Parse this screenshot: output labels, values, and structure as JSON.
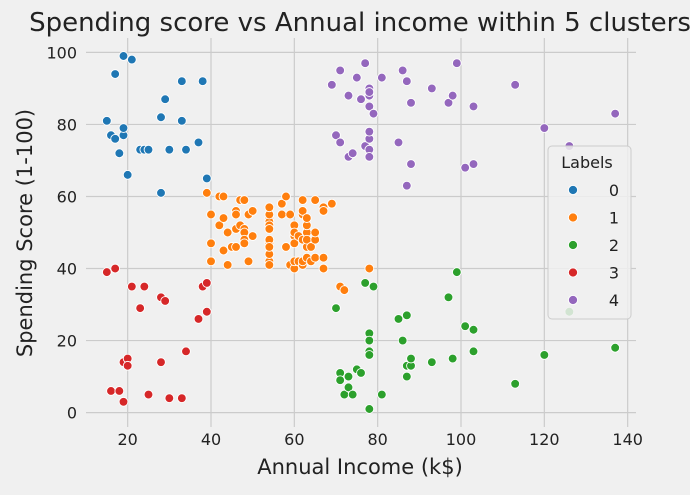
{
  "chart_data": {
    "type": "scatter",
    "title": "Spending score vs Annual income within 5 clusters",
    "xlabel": "Annual Income (k$)",
    "ylabel": "Spending Score (1-100)",
    "xlim": [
      10,
      142
    ],
    "ylim": [
      -4,
      104
    ],
    "xticks": [
      20,
      40,
      60,
      80,
      100,
      120,
      140
    ],
    "yticks": [
      0,
      20,
      40,
      60,
      80,
      100
    ],
    "grid": true,
    "legend": {
      "title": "Labels",
      "placement": "right"
    },
    "series": [
      {
        "name": "0",
        "color": "#1f77b4",
        "points": [
          [
            15,
            81
          ],
          [
            16,
            77
          ],
          [
            17,
            76
          ],
          [
            17,
            94
          ],
          [
            18,
            72
          ],
          [
            19,
            99
          ],
          [
            19,
            77
          ],
          [
            19,
            79
          ],
          [
            20,
            66
          ],
          [
            21,
            98
          ],
          [
            23,
            73
          ],
          [
            24,
            73
          ],
          [
            25,
            73
          ],
          [
            28,
            61
          ],
          [
            28,
            82
          ],
          [
            29,
            87
          ],
          [
            30,
            73
          ],
          [
            33,
            81
          ],
          [
            33,
            92
          ],
          [
            34,
            73
          ],
          [
            37,
            75
          ],
          [
            38,
            92
          ],
          [
            39,
            65
          ]
        ]
      },
      {
        "name": "1",
        "color": "#ff7f0e",
        "points": [
          [
            39,
            61
          ],
          [
            40,
            55
          ],
          [
            40,
            47
          ],
          [
            40,
            42
          ],
          [
            42,
            52
          ],
          [
            42,
            60
          ],
          [
            43,
            54
          ],
          [
            43,
            60
          ],
          [
            43,
            45
          ],
          [
            44,
            50
          ],
          [
            44,
            41
          ],
          [
            45,
            46
          ],
          [
            46,
            51
          ],
          [
            46,
            46
          ],
          [
            46,
            56
          ],
          [
            46,
            55
          ],
          [
            47,
            52
          ],
          [
            47,
            59
          ],
          [
            48,
            51
          ],
          [
            48,
            59
          ],
          [
            48,
            50
          ],
          [
            48,
            48
          ],
          [
            48,
            59
          ],
          [
            48,
            47
          ],
          [
            49,
            55
          ],
          [
            49,
            42
          ],
          [
            50,
            49
          ],
          [
            50,
            56
          ],
          [
            54,
            47
          ],
          [
            54,
            54
          ],
          [
            54,
            53
          ],
          [
            54,
            48
          ],
          [
            54,
            52
          ],
          [
            54,
            42
          ],
          [
            54,
            51
          ],
          [
            54,
            55
          ],
          [
            54,
            41
          ],
          [
            54,
            44
          ],
          [
            54,
            57
          ],
          [
            54,
            46
          ],
          [
            57,
            58
          ],
          [
            57,
            55
          ],
          [
            58,
            60
          ],
          [
            58,
            46
          ],
          [
            59,
            55
          ],
          [
            59,
            41
          ],
          [
            60,
            49
          ],
          [
            60,
            40
          ],
          [
            60,
            42
          ],
          [
            60,
            52
          ],
          [
            60,
            47
          ],
          [
            60,
            50
          ],
          [
            61,
            42
          ],
          [
            61,
            49
          ],
          [
            62,
            41
          ],
          [
            62,
            48
          ],
          [
            62,
            59
          ],
          [
            62,
            55
          ],
          [
            62,
            56
          ],
          [
            62,
            42
          ],
          [
            63,
            50
          ],
          [
            63,
            46
          ],
          [
            63,
            43
          ],
          [
            63,
            48
          ],
          [
            63,
            52
          ],
          [
            63,
            54
          ],
          [
            64,
            42
          ],
          [
            64,
            46
          ],
          [
            65,
            48
          ],
          [
            65,
            50
          ],
          [
            65,
            43
          ],
          [
            65,
            59
          ],
          [
            67,
            43
          ],
          [
            67,
            57
          ],
          [
            67,
            56
          ],
          [
            67,
            40
          ],
          [
            69,
            58
          ],
          [
            71,
            35
          ],
          [
            72,
            34
          ],
          [
            78,
            40
          ]
        ]
      },
      {
        "name": "2",
        "color": "#2ca02c",
        "points": [
          [
            70,
            29
          ],
          [
            71,
            11
          ],
          [
            71,
            9
          ],
          [
            72,
            5
          ],
          [
            73,
            7
          ],
          [
            73,
            10
          ],
          [
            74,
            5
          ],
          [
            75,
            12
          ],
          [
            76,
            11
          ],
          [
            77,
            36
          ],
          [
            78,
            1
          ],
          [
            78,
            22
          ],
          [
            78,
            17
          ],
          [
            78,
            20
          ],
          [
            78,
            16
          ],
          [
            79,
            35
          ],
          [
            81,
            5
          ],
          [
            85,
            26
          ],
          [
            86,
            20
          ],
          [
            87,
            27
          ],
          [
            87,
            13
          ],
          [
            87,
            10
          ],
          [
            88,
            13
          ],
          [
            88,
            15
          ],
          [
            93,
            14
          ],
          [
            97,
            32
          ],
          [
            98,
            15
          ],
          [
            99,
            39
          ],
          [
            101,
            24
          ],
          [
            103,
            17
          ],
          [
            103,
            23
          ],
          [
            113,
            8
          ],
          [
            120,
            16
          ],
          [
            126,
            28
          ],
          [
            137,
            18
          ]
        ]
      },
      {
        "name": "3",
        "color": "#d62728",
        "points": [
          [
            15,
            39
          ],
          [
            16,
            6
          ],
          [
            17,
            40
          ],
          [
            18,
            6
          ],
          [
            19,
            3
          ],
          [
            19,
            14
          ],
          [
            20,
            15
          ],
          [
            20,
            13
          ],
          [
            21,
            35
          ],
          [
            23,
            29
          ],
          [
            24,
            35
          ],
          [
            25,
            5
          ],
          [
            28,
            14
          ],
          [
            28,
            32
          ],
          [
            29,
            31
          ],
          [
            30,
            4
          ],
          [
            33,
            4
          ],
          [
            34,
            17
          ],
          [
            37,
            26
          ],
          [
            38,
            35
          ],
          [
            39,
            36
          ],
          [
            39,
            28
          ]
        ]
      },
      {
        "name": "4",
        "color": "#9467bd",
        "points": [
          [
            69,
            91
          ],
          [
            70,
            77
          ],
          [
            71,
            95
          ],
          [
            71,
            75
          ],
          [
            73,
            88
          ],
          [
            73,
            71
          ],
          [
            74,
            72
          ],
          [
            75,
            93
          ],
          [
            76,
            87
          ],
          [
            77,
            97
          ],
          [
            77,
            74
          ],
          [
            78,
            90
          ],
          [
            78,
            88
          ],
          [
            78,
            89
          ],
          [
            78,
            76
          ],
          [
            78,
            78
          ],
          [
            78,
            73
          ],
          [
            78,
            85
          ],
          [
            78,
            71
          ],
          [
            79,
            83
          ],
          [
            81,
            93
          ],
          [
            85,
            75
          ],
          [
            86,
            95
          ],
          [
            87,
            63
          ],
          [
            87,
            92
          ],
          [
            88,
            69
          ],
          [
            88,
            86
          ],
          [
            93,
            90
          ],
          [
            97,
            86
          ],
          [
            98,
            88
          ],
          [
            99,
            97
          ],
          [
            101,
            68
          ],
          [
            103,
            85
          ],
          [
            103,
            69
          ],
          [
            113,
            91
          ],
          [
            120,
            79
          ],
          [
            126,
            74
          ],
          [
            137,
            83
          ]
        ]
      }
    ]
  }
}
